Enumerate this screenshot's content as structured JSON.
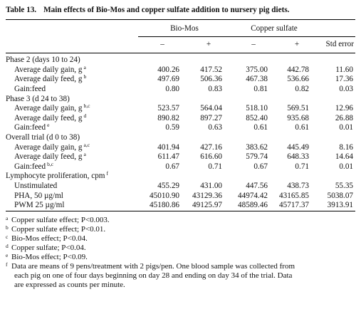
{
  "caption": {
    "number": "Table 13.",
    "text": "Main effects of Bio-Mos and copper sulfate addition to nursery pig diets."
  },
  "groups": [
    "Bio-Mos",
    "Copper sulfate"
  ],
  "columns": [
    "–",
    "+",
    "–",
    "+",
    "Std  error"
  ],
  "rows": [
    {
      "label": "Phase 2 (days 10 to 24)",
      "sup": "",
      "section": true,
      "values": [
        "",
        "",
        "",
        "",
        ""
      ]
    },
    {
      "label": "Average daily gain, g",
      "sup": "a",
      "section": false,
      "values": [
        "400.26",
        "417.52",
        "375.00",
        "442.78",
        "11.60"
      ]
    },
    {
      "label": "Average daily feed, g",
      "sup": "b",
      "section": false,
      "values": [
        "497.69",
        "506.36",
        "467.38",
        "536.66",
        "17.36"
      ]
    },
    {
      "label": "Gain:feed",
      "sup": "",
      "section": false,
      "values": [
        "0.80",
        "0.83",
        "0.81",
        "0.82",
        "0.03"
      ]
    },
    {
      "label": "Phase 3 (d 24 to 38)",
      "sup": "",
      "section": true,
      "values": [
        "",
        "",
        "",
        "",
        ""
      ]
    },
    {
      "label": "Average daily gain, g",
      "sup": "b,c",
      "section": false,
      "values": [
        "523.57",
        "564.04",
        "518.10",
        "569.51",
        "12.96"
      ]
    },
    {
      "label": "Average daily feed, g",
      "sup": "d",
      "section": false,
      "values": [
        "890.82",
        "897.27",
        "852.40",
        "935.68",
        "26.88"
      ]
    },
    {
      "label": "Gain:feed",
      "sup": "e",
      "section": false,
      "values": [
        "0.59",
        "0.63",
        "0.61",
        "0.61",
        "0.01"
      ]
    },
    {
      "label": "Overall trial (d 0 to 38)",
      "sup": "",
      "section": true,
      "values": [
        "",
        "",
        "",
        "",
        ""
      ]
    },
    {
      "label": "Average daily gain, g",
      "sup": "a,c",
      "section": false,
      "values": [
        "401.94",
        "427.16",
        "383.62",
        "445.49",
        "8.16"
      ]
    },
    {
      "label": "Average daily feed, g",
      "sup": "a",
      "section": false,
      "values": [
        "611.47",
        "616.60",
        "579.74",
        "648.33",
        "14.64"
      ]
    },
    {
      "label": "Gain:feed",
      "sup": "b,c",
      "section": false,
      "values": [
        "0.67",
        "0.71",
        "0.67",
        "0.71",
        "0.01"
      ]
    },
    {
      "label": "Lymphocyte proliferation, cpm",
      "sup": "f",
      "section": true,
      "values": [
        "",
        "",
        "",
        "",
        ""
      ]
    },
    {
      "label": "Unstimulated",
      "sup": "",
      "section": false,
      "values": [
        "455.29",
        "431.00",
        "447.56",
        "438.73",
        "55.35"
      ]
    },
    {
      "label": "PHA, 50 µg/ml",
      "sup": "",
      "section": false,
      "values": [
        "45010.90",
        "43129.36",
        "44974.42",
        "43165.85",
        "5038.07"
      ]
    },
    {
      "label": "PWM 25 µg/ml",
      "sup": "",
      "section": false,
      "values": [
        "45180.86",
        "49125.97",
        "48589.46",
        "45717.37",
        "3913.91"
      ]
    }
  ],
  "footnotes": [
    {
      "mark": "a",
      "lines": [
        "Copper sulfate effect; P<0.003."
      ]
    },
    {
      "mark": "b",
      "lines": [
        "Copper sulfate effect; P<0.01."
      ]
    },
    {
      "mark": "c",
      "lines": [
        "Bio-Mos effect; P<0.04."
      ]
    },
    {
      "mark": "d",
      "lines": [
        "Copper sulfate; P<0.04."
      ]
    },
    {
      "mark": "e",
      "lines": [
        "Bio-Mos effect; P<0.09."
      ]
    },
    {
      "mark": "f",
      "lines": [
        "Data are means of 9 pens/treatment with 2 pigs/pen. One blood sample was collected from",
        "each pig on one of four days beginning on day 28 and ending on day 34 of the trial. Data",
        "are expressed as counts per minute."
      ]
    }
  ]
}
